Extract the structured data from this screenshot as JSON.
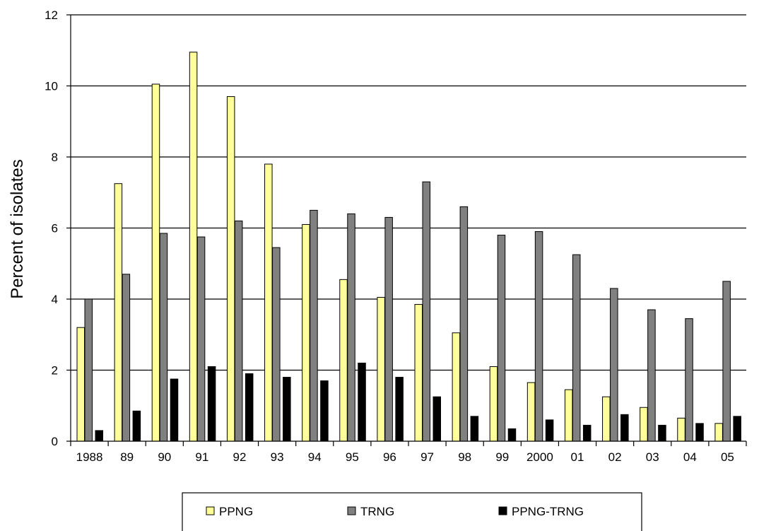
{
  "chart_data": {
    "type": "bar",
    "title": "",
    "xlabel": "",
    "ylabel": "Percent of isolates",
    "ylim": [
      0,
      12
    ],
    "yticks": [
      0,
      2,
      4,
      6,
      8,
      10,
      12
    ],
    "grid": true,
    "legend_position": "bottom",
    "categories": [
      "1988",
      "89",
      "90",
      "91",
      "92",
      "93",
      "94",
      "95",
      "96",
      "97",
      "98",
      "99",
      "2000",
      "01",
      "02",
      "03",
      "04",
      "05"
    ],
    "series": [
      {
        "name": "PPNG",
        "color": "#ffff99",
        "values": [
          3.2,
          7.25,
          10.05,
          10.95,
          9.7,
          7.8,
          6.1,
          4.55,
          4.05,
          3.85,
          3.05,
          2.1,
          1.65,
          1.45,
          1.25,
          0.95,
          0.65,
          0.5
        ]
      },
      {
        "name": "TRNG",
        "color": "#808080",
        "values": [
          4.0,
          4.7,
          5.85,
          5.75,
          6.2,
          5.45,
          6.5,
          6.4,
          6.3,
          7.3,
          6.6,
          5.8,
          5.9,
          5.25,
          4.3,
          3.7,
          3.45,
          4.5
        ]
      },
      {
        "name": "PPNG-TRNG",
        "color": "#000000",
        "values": [
          0.3,
          0.85,
          1.75,
          2.1,
          1.9,
          1.8,
          1.7,
          2.2,
          1.8,
          1.25,
          0.7,
          0.35,
          0.6,
          0.45,
          0.75,
          0.45,
          0.5,
          0.7
        ]
      }
    ]
  }
}
